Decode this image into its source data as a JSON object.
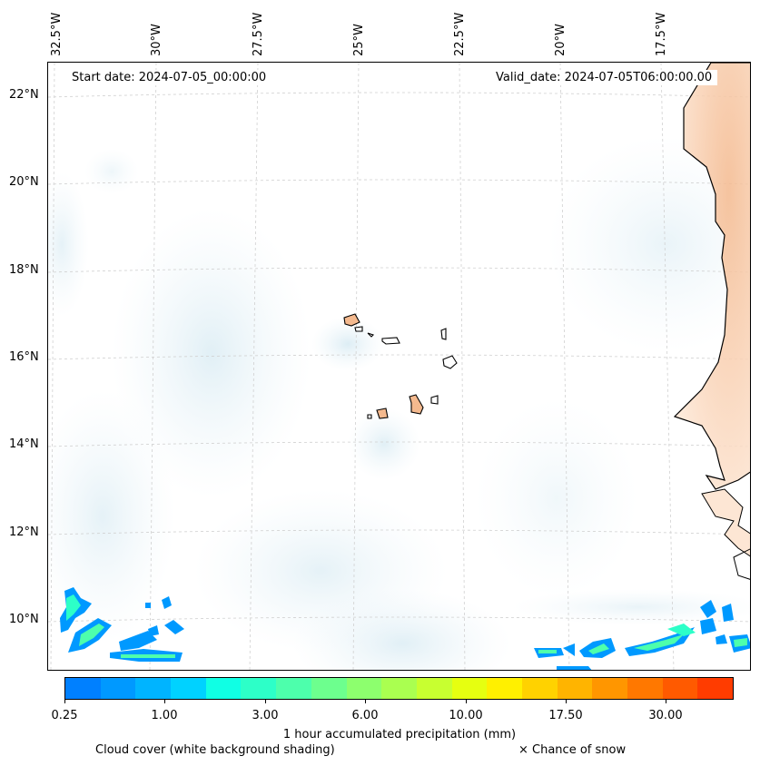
{
  "map": {
    "start_date": "Start date: 2024-07-05_00:00:00",
    "valid_date": "Valid_date: 2024-07-05T06:00:00.00",
    "lon_labels": [
      "32.5°W",
      "30°W",
      "27.5°W",
      "25°W",
      "22.5°W",
      "20°W",
      "17.5°W"
    ],
    "lat_labels": [
      "22°N",
      "20°N",
      "18°N",
      "16°N",
      "14°N",
      "12°N",
      "10°N"
    ],
    "lon_values": [
      -32.5,
      -30,
      -27.5,
      -25,
      -22.5,
      -20,
      -17.5
    ],
    "lat_values": [
      22,
      20,
      18,
      16,
      14,
      12,
      10
    ],
    "extent": {
      "lon_min": -32.6,
      "lon_max": -15.3,
      "lat_min": 8.9,
      "lat_max": 22.8
    }
  },
  "colorbar": {
    "title": "1 hour accumulated precipitation (mm)",
    "tick_labels": [
      "0.25",
      "1.00",
      "3.00",
      "6.00",
      "10.00",
      "17.50",
      "30.00"
    ],
    "colors": [
      "#0080ff",
      "#0099ff",
      "#00b4ff",
      "#00d2ff",
      "#10ffe4",
      "#2dffc8",
      "#4dffac",
      "#6dff8e",
      "#8dff6e",
      "#aaff50",
      "#c8ff30",
      "#e6ff10",
      "#fff000",
      "#ffd200",
      "#ffb400",
      "#ff9600",
      "#ff7800",
      "#ff5a00",
      "#ff3c00"
    ]
  },
  "legend": {
    "cloud_note": "Cloud cover (white background shading)",
    "snow_note": "× Chance of snow"
  }
}
